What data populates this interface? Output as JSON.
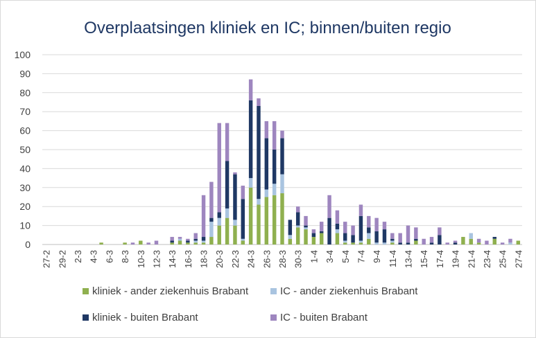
{
  "chart_data": {
    "type": "bar",
    "stacked": true,
    "title": "Overplaatsingen kliniek en IC; binnen/buiten regio",
    "xlabel": "",
    "ylabel": "",
    "ylim": [
      0,
      100
    ],
    "yticks": [
      0,
      10,
      20,
      30,
      40,
      50,
      60,
      70,
      80,
      90,
      100
    ],
    "grid": true,
    "legend_position": "bottom",
    "categories": [
      "27-2",
      "28-2",
      "29-2",
      "1-3",
      "2-3",
      "3-3",
      "4-3",
      "5-3",
      "6-3",
      "7-3",
      "8-3",
      "9-3",
      "10-3",
      "11-3",
      "12-3",
      "13-3",
      "14-3",
      "15-3",
      "16-3",
      "17-3",
      "18-3",
      "19-3",
      "20-3",
      "21-3",
      "22-3",
      "23-3",
      "24-3",
      "25-3",
      "26-3",
      "27-3",
      "28-3",
      "29-3",
      "30-3",
      "31-3",
      "1-4",
      "2-4",
      "3-4",
      "4-4",
      "5-4",
      "6-4",
      "7-4",
      "8-4",
      "9-4",
      "10-4",
      "11-4",
      "12-4",
      "13-4",
      "14-4",
      "15-4",
      "16-4",
      "17-4",
      "18-4",
      "19-4",
      "20-4",
      "21-4",
      "22-4",
      "23-4",
      "24-4",
      "25-4",
      "26-4",
      "27-4"
    ],
    "tick_labels": [
      "27-2",
      "29-2",
      "2-3",
      "4-3",
      "6-3",
      "8-3",
      "10-3",
      "12-3",
      "14-3",
      "16-3",
      "18-3",
      "20-3",
      "22-3",
      "24-3",
      "26-3",
      "28-3",
      "30-3",
      "1-4",
      "3-4",
      "5-4",
      "7-4",
      "9-4",
      "11-4",
      "13-4",
      "15-4",
      "17-4",
      "19-4",
      "21-4",
      "23-4",
      "25-4",
      "27-4"
    ],
    "series": [
      {
        "name": "kliniek - ander ziekenhuis Brabant",
        "color": "#8fb04f",
        "values": [
          0,
          0,
          0,
          0,
          0,
          0,
          0,
          1,
          0,
          0,
          1,
          0,
          2,
          0,
          0,
          0,
          1,
          2,
          1,
          1,
          1,
          4,
          10,
          14,
          10,
          2,
          30,
          21,
          25,
          26,
          27,
          3,
          9,
          8,
          4,
          6,
          0,
          6,
          1,
          1,
          1,
          3,
          0,
          0,
          1,
          0,
          0,
          2,
          0,
          0,
          0,
          0,
          0,
          4,
          3,
          1,
          0,
          3,
          0,
          0,
          2
        ]
      },
      {
        "name": "IC - ander ziekenhuis Brabant",
        "color": "#a9c4e0",
        "values": [
          0,
          0,
          0,
          0,
          0,
          0,
          0,
          0,
          0,
          0,
          0,
          0,
          0,
          0,
          0,
          0,
          0,
          1,
          0,
          1,
          1,
          8,
          4,
          5,
          3,
          1,
          5,
          3,
          4,
          6,
          10,
          2,
          1,
          1,
          0,
          0,
          0,
          2,
          1,
          0,
          1,
          3,
          1,
          1,
          1,
          0,
          0,
          0,
          0,
          0,
          0,
          0,
          0,
          0,
          3,
          0,
          0,
          0,
          0,
          1,
          0
        ]
      },
      {
        "name": "kliniek - buiten Brabant",
        "color": "#1f3864",
        "values": [
          0,
          0,
          0,
          0,
          0,
          0,
          0,
          0,
          0,
          0,
          0,
          0,
          0,
          0,
          0,
          0,
          1,
          0,
          1,
          1,
          2,
          2,
          3,
          25,
          24,
          21,
          41,
          49,
          27,
          18,
          19,
          8,
          7,
          1,
          2,
          1,
          14,
          3,
          4,
          4,
          13,
          3,
          6,
          7,
          1,
          1,
          1,
          1,
          0,
          1,
          5,
          0,
          1,
          0,
          0,
          0,
          0,
          1,
          0,
          0,
          0
        ]
      },
      {
        "name": "IC - buiten Brabant",
        "color": "#9e86bf",
        "values": [
          0,
          0,
          0,
          0,
          0,
          0,
          0,
          0,
          0,
          0,
          0,
          1,
          0,
          1,
          2,
          0,
          2,
          1,
          1,
          3,
          22,
          19,
          47,
          20,
          1,
          7,
          11,
          4,
          9,
          15,
          4,
          0,
          3,
          5,
          2,
          5,
          12,
          7,
          6,
          5,
          6,
          6,
          7,
          4,
          3,
          5,
          9,
          6,
          3,
          3,
          4,
          1,
          1,
          0,
          0,
          2,
          2,
          0,
          1,
          2,
          0
        ]
      }
    ]
  }
}
